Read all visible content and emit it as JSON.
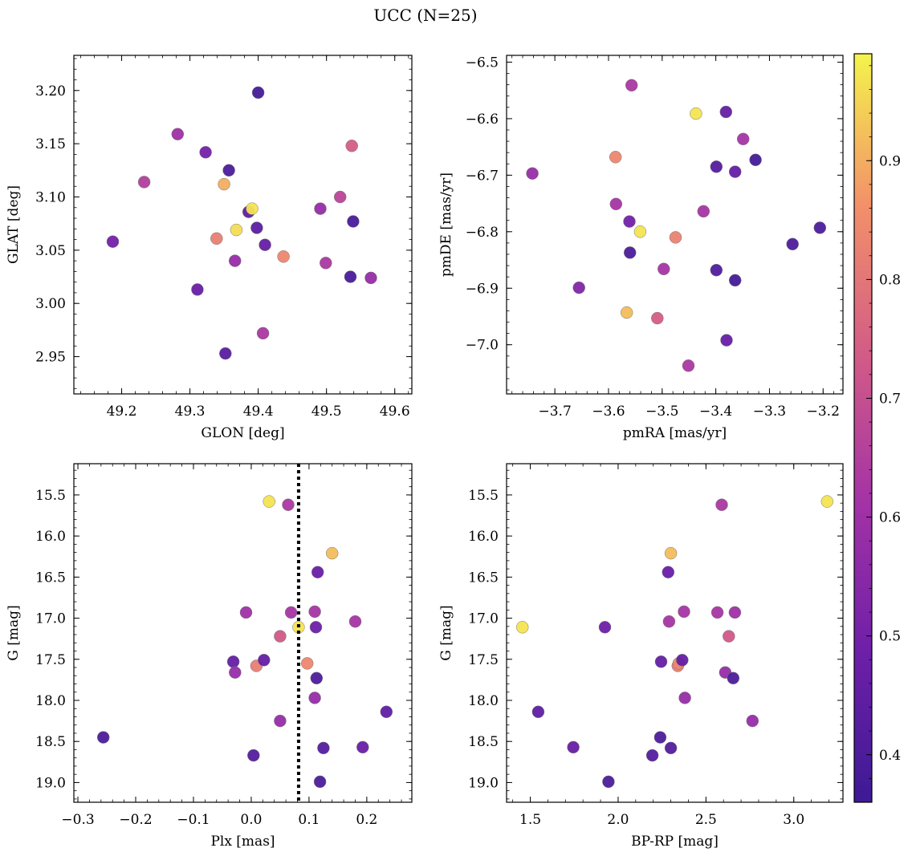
{
  "figure": {
    "title": "UCC (N=25)",
    "colorbar": {
      "vmin": 0.36,
      "vmax": 0.99,
      "ticks": [
        0.4,
        0.5,
        0.6,
        0.7,
        0.8,
        0.9
      ],
      "tick_labels": [
        "0.4",
        "0.5",
        "0.6",
        "0.7",
        "0.8",
        "0.9"
      ]
    }
  },
  "chart_data": [
    {
      "type": "scatter",
      "xlabel": "GLON [deg]",
      "ylabel": "GLAT [deg]",
      "xlim": [
        49.13,
        49.625
      ],
      "ylim": [
        2.915,
        3.233
      ],
      "xticks": [
        49.2,
        49.3,
        49.4,
        49.5,
        49.6
      ],
      "xticklabels": [
        "49.2",
        "49.3",
        "49.4",
        "49.5",
        "49.6"
      ],
      "yticks": [
        2.95,
        3.0,
        3.05,
        3.1,
        3.15,
        3.2
      ],
      "yticklabels": [
        "2.95",
        "3.00",
        "3.05",
        "3.10",
        "3.15",
        "3.20"
      ],
      "y_inverted": false,
      "points": [
        {
          "x": 49.187,
          "y": 3.058,
          "c": 0.5
        },
        {
          "x": 49.233,
          "y": 3.114,
          "c": 0.65
        },
        {
          "x": 49.282,
          "y": 3.159,
          "c": 0.6
        },
        {
          "x": 49.311,
          "y": 3.013,
          "c": 0.47
        },
        {
          "x": 49.323,
          "y": 3.142,
          "c": 0.5
        },
        {
          "x": 49.339,
          "y": 3.061,
          "c": 0.82
        },
        {
          "x": 49.35,
          "y": 3.112,
          "c": 0.9
        },
        {
          "x": 49.352,
          "y": 2.953,
          "c": 0.43
        },
        {
          "x": 49.357,
          "y": 3.125,
          "c": 0.4
        },
        {
          "x": 49.366,
          "y": 3.04,
          "c": 0.58
        },
        {
          "x": 49.368,
          "y": 3.069,
          "c": 0.96
        },
        {
          "x": 49.386,
          "y": 3.086,
          "c": 0.45
        },
        {
          "x": 49.391,
          "y": 3.089,
          "c": 0.97
        },
        {
          "x": 49.398,
          "y": 3.071,
          "c": 0.44
        },
        {
          "x": 49.4,
          "y": 3.198,
          "c": 0.38
        },
        {
          "x": 49.407,
          "y": 2.972,
          "c": 0.63
        },
        {
          "x": 49.41,
          "y": 3.055,
          "c": 0.46
        },
        {
          "x": 49.437,
          "y": 3.044,
          "c": 0.84
        },
        {
          "x": 49.491,
          "y": 3.089,
          "c": 0.58
        },
        {
          "x": 49.499,
          "y": 3.038,
          "c": 0.63
        },
        {
          "x": 49.52,
          "y": 3.1,
          "c": 0.67
        },
        {
          "x": 49.535,
          "y": 3.025,
          "c": 0.39
        },
        {
          "x": 49.537,
          "y": 3.148,
          "c": 0.74
        },
        {
          "x": 49.539,
          "y": 3.077,
          "c": 0.39
        },
        {
          "x": 49.565,
          "y": 3.024,
          "c": 0.58
        }
      ]
    },
    {
      "type": "scatter",
      "xlabel": "pmRA [mas/yr]",
      "ylabel": "pmDE [mas/yr]",
      "xlim": [
        -3.79,
        -3.163
      ],
      "ylim": [
        -7.087,
        -6.488
      ],
      "xticks": [
        -3.7,
        -3.6,
        -3.5,
        -3.4,
        -3.3,
        -3.2
      ],
      "xticklabels": [
        "−3.7",
        "−3.6",
        "−3.5",
        "−3.4",
        "−3.3",
        "−3.2"
      ],
      "yticks": [
        -7.0,
        -6.9,
        -6.8,
        -6.7,
        -6.6,
        -6.5
      ],
      "yticklabels": [
        "−7.0",
        "−6.9",
        "−6.8",
        "−6.7",
        "−6.6",
        "−6.5"
      ],
      "y_inverted": false,
      "points": [
        {
          "x": -3.742,
          "y": -6.697,
          "c": 0.58
        },
        {
          "x": -3.655,
          "y": -6.899,
          "c": 0.53
        },
        {
          "x": -3.587,
          "y": -6.668,
          "c": 0.84
        },
        {
          "x": -3.586,
          "y": -6.751,
          "c": 0.62
        },
        {
          "x": -3.566,
          "y": -6.943,
          "c": 0.92
        },
        {
          "x": -3.561,
          "y": -6.782,
          "c": 0.5
        },
        {
          "x": -3.56,
          "y": -6.837,
          "c": 0.4
        },
        {
          "x": -3.557,
          "y": -6.541,
          "c": 0.63
        },
        {
          "x": -3.541,
          "y": -6.8,
          "c": 0.97
        },
        {
          "x": -3.509,
          "y": -6.953,
          "c": 0.74
        },
        {
          "x": -3.497,
          "y": -6.866,
          "c": 0.62
        },
        {
          "x": -3.475,
          "y": -6.81,
          "c": 0.83
        },
        {
          "x": -3.451,
          "y": -7.037,
          "c": 0.63
        },
        {
          "x": -3.437,
          "y": -6.591,
          "c": 0.97
        },
        {
          "x": -3.423,
          "y": -6.764,
          "c": 0.62
        },
        {
          "x": -3.399,
          "y": -6.685,
          "c": 0.42
        },
        {
          "x": -3.399,
          "y": -6.868,
          "c": 0.41
        },
        {
          "x": -3.381,
          "y": -6.588,
          "c": 0.46
        },
        {
          "x": -3.38,
          "y": -6.992,
          "c": 0.47
        },
        {
          "x": -3.364,
          "y": -6.694,
          "c": 0.46
        },
        {
          "x": -3.364,
          "y": -6.886,
          "c": 0.38
        },
        {
          "x": -3.349,
          "y": -6.636,
          "c": 0.62
        },
        {
          "x": -3.326,
          "y": -6.673,
          "c": 0.38
        },
        {
          "x": -3.257,
          "y": -6.822,
          "c": 0.4
        },
        {
          "x": -3.206,
          "y": -6.793,
          "c": 0.4
        }
      ]
    },
    {
      "type": "scatter",
      "xlabel": "Plx [mas]",
      "ylabel": "G [mag]",
      "xlim": [
        -0.307,
        0.278
      ],
      "ylim": [
        19.24,
        15.12
      ],
      "xticks": [
        -0.3,
        -0.2,
        -0.1,
        0.0,
        0.1,
        0.2
      ],
      "xticklabels": [
        "−0.3",
        "−0.2",
        "−0.1",
        "0.0",
        "0.1",
        "0.2"
      ],
      "yticks": [
        15.5,
        16.0,
        16.5,
        17.0,
        17.5,
        18.0,
        18.5,
        19.0
      ],
      "yticklabels": [
        "15.5",
        "16.0",
        "16.5",
        "17.0",
        "17.5",
        "18.0",
        "18.5",
        "19.0"
      ],
      "y_inverted": true,
      "vline": {
        "x": 0.082,
        "style": "dotted"
      },
      "points": [
        {
          "x": -0.256,
          "y": 18.45,
          "c": 0.4
        },
        {
          "x": -0.031,
          "y": 17.53,
          "c": 0.46
        },
        {
          "x": -0.028,
          "y": 17.66,
          "c": 0.58
        },
        {
          "x": -0.009,
          "y": 16.93,
          "c": 0.6
        },
        {
          "x": 0.004,
          "y": 18.67,
          "c": 0.42
        },
        {
          "x": 0.009,
          "y": 17.58,
          "c": 0.82
        },
        {
          "x": 0.022,
          "y": 17.51,
          "c": 0.46
        },
        {
          "x": 0.031,
          "y": 15.58,
          "c": 0.97
        },
        {
          "x": 0.05,
          "y": 18.25,
          "c": 0.58
        },
        {
          "x": 0.05,
          "y": 17.22,
          "c": 0.73
        },
        {
          "x": 0.064,
          "y": 15.62,
          "c": 0.63
        },
        {
          "x": 0.069,
          "y": 16.93,
          "c": 0.62
        },
        {
          "x": 0.082,
          "y": 17.11,
          "c": 0.97
        },
        {
          "x": 0.097,
          "y": 17.55,
          "c": 0.84
        },
        {
          "x": 0.11,
          "y": 16.92,
          "c": 0.62
        },
        {
          "x": 0.11,
          "y": 17.97,
          "c": 0.58
        },
        {
          "x": 0.112,
          "y": 17.11,
          "c": 0.48
        },
        {
          "x": 0.113,
          "y": 17.73,
          "c": 0.4
        },
        {
          "x": 0.115,
          "y": 16.44,
          "c": 0.47
        },
        {
          "x": 0.119,
          "y": 18.99,
          "c": 0.4
        },
        {
          "x": 0.125,
          "y": 18.58,
          "c": 0.42
        },
        {
          "x": 0.14,
          "y": 16.21,
          "c": 0.92
        },
        {
          "x": 0.18,
          "y": 17.04,
          "c": 0.62
        },
        {
          "x": 0.193,
          "y": 18.57,
          "c": 0.47
        },
        {
          "x": 0.234,
          "y": 18.14,
          "c": 0.45
        }
      ]
    },
    {
      "type": "scatter",
      "xlabel": "BP-RP [mag]",
      "ylabel": "G [mag]",
      "xlim": [
        1.365,
        3.28
      ],
      "ylim": [
        19.24,
        15.12
      ],
      "xticks": [
        1.5,
        2.0,
        2.5,
        3.0
      ],
      "xticklabels": [
        "1.5",
        "2.0",
        "2.5",
        "3.0"
      ],
      "yticks": [
        15.5,
        16.0,
        16.5,
        17.0,
        17.5,
        18.0,
        18.5,
        19.0
      ],
      "yticklabels": [
        "15.5",
        "16.0",
        "16.5",
        "17.0",
        "17.5",
        "18.0",
        "18.5",
        "19.0"
      ],
      "y_inverted": true,
      "points": [
        {
          "x": 1.455,
          "y": 17.11,
          "c": 0.97
        },
        {
          "x": 1.545,
          "y": 18.14,
          "c": 0.45
        },
        {
          "x": 1.745,
          "y": 18.57,
          "c": 0.47
        },
        {
          "x": 1.925,
          "y": 17.11,
          "c": 0.48
        },
        {
          "x": 1.945,
          "y": 18.99,
          "c": 0.4
        },
        {
          "x": 2.195,
          "y": 18.67,
          "c": 0.42
        },
        {
          "x": 2.24,
          "y": 18.45,
          "c": 0.4
        },
        {
          "x": 2.245,
          "y": 17.53,
          "c": 0.46
        },
        {
          "x": 2.285,
          "y": 16.44,
          "c": 0.47
        },
        {
          "x": 2.29,
          "y": 17.04,
          "c": 0.62
        },
        {
          "x": 2.3,
          "y": 16.21,
          "c": 0.92
        },
        {
          "x": 2.3,
          "y": 18.58,
          "c": 0.42
        },
        {
          "x": 2.34,
          "y": 17.58,
          "c": 0.82
        },
        {
          "x": 2.345,
          "y": 17.55,
          "c": 0.84
        },
        {
          "x": 2.365,
          "y": 17.51,
          "c": 0.46
        },
        {
          "x": 2.375,
          "y": 16.92,
          "c": 0.62
        },
        {
          "x": 2.38,
          "y": 17.97,
          "c": 0.58
        },
        {
          "x": 2.565,
          "y": 16.93,
          "c": 0.62
        },
        {
          "x": 2.59,
          "y": 15.62,
          "c": 0.63
        },
        {
          "x": 2.61,
          "y": 17.66,
          "c": 0.58
        },
        {
          "x": 2.63,
          "y": 17.22,
          "c": 0.73
        },
        {
          "x": 2.655,
          "y": 17.73,
          "c": 0.4
        },
        {
          "x": 2.665,
          "y": 16.93,
          "c": 0.6
        },
        {
          "x": 2.765,
          "y": 18.25,
          "c": 0.58
        },
        {
          "x": 3.19,
          "y": 15.58,
          "c": 0.97
        }
      ]
    }
  ]
}
